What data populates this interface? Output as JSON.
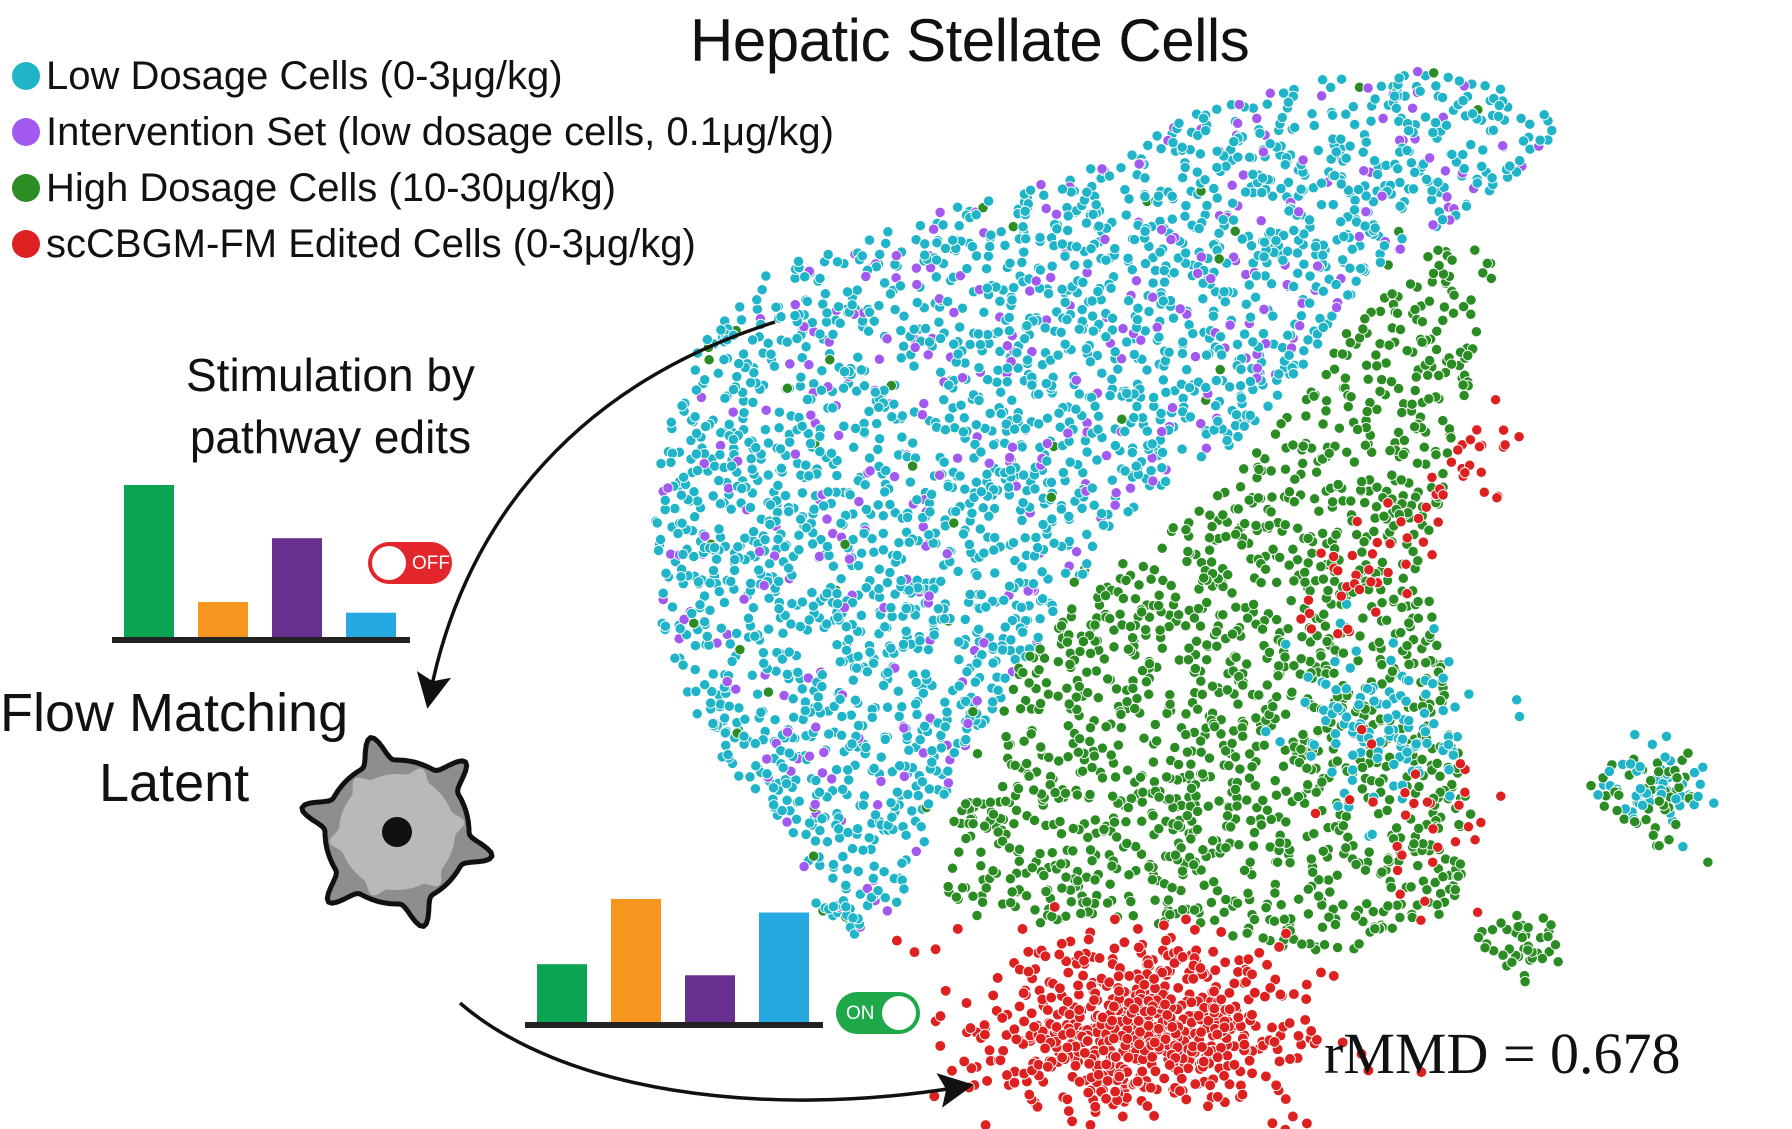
{
  "chart_data": {
    "type": "scatter",
    "title": "Hepatic Stellate Cells",
    "legend_position": "top-left",
    "axes_visible": false,
    "series": [
      {
        "name": "Low Dosage Cells (0-3μg/kg)",
        "color": "#1fb4c8"
      },
      {
        "name": "Intervention Set (low dosage cells, 0.1μg/kg)",
        "color": "#a259f0"
      },
      {
        "name": "High Dosage Cells (10-30μg/kg)",
        "color": "#2a8c22"
      },
      {
        "name": "scCBGM-FM Edited Cells (0-3μg/kg)",
        "color": "#dd2020"
      }
    ],
    "annotation": "rMMD = 0.678"
  },
  "diagram": {
    "stimulation_label_line1": "Stimulation by",
    "stimulation_label_line2": "pathway edits",
    "latent_label_line1": "Flow Matching",
    "latent_label_line2": "Latent",
    "toggle_off_text": "OFF",
    "toggle_on_text": "ON",
    "bars_top": {
      "values": [
        1.0,
        0.23,
        0.65,
        0.16
      ],
      "colors": [
        "#0aa552",
        "#f6961f",
        "#68308f",
        "#26a9e0"
      ]
    },
    "bars_bottom": {
      "values": [
        0.47,
        1.0,
        0.38,
        0.89
      ],
      "colors": [
        "#0aa552",
        "#f6961f",
        "#68308f",
        "#26a9e0"
      ]
    },
    "toggle_off_color": "#e3262b",
    "toggle_on_color": "#1ea84a",
    "gear_color": "#8e8e8e"
  }
}
